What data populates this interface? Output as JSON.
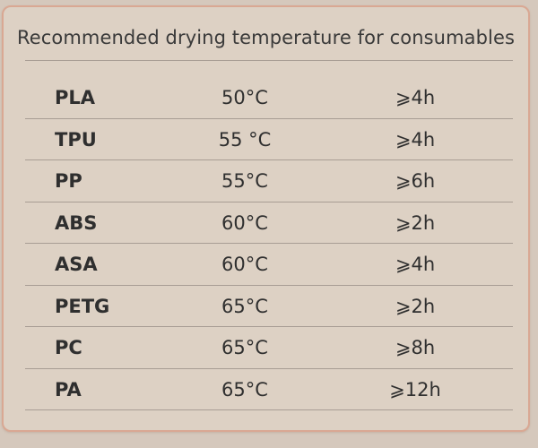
{
  "panel": {
    "title": "Recommended drying temperature for consumables"
  },
  "table": {
    "rows": [
      {
        "material": "PLA",
        "temperature": "50°C",
        "time": "⩾4h"
      },
      {
        "material": "TPU",
        "temperature": "55 °C",
        "time": "⩾4h"
      },
      {
        "material": "PP",
        "temperature": "55°C",
        "time": "⩾6h"
      },
      {
        "material": "ABS",
        "temperature": "60°C",
        "time": "⩾2h"
      },
      {
        "material": "ASA",
        "temperature": "60°C",
        "time": "⩾4h"
      },
      {
        "material": "PETG",
        "temperature": "65°C",
        "time": "⩾2h"
      },
      {
        "material": "PC",
        "temperature": "65°C",
        "time": "⩾8h"
      },
      {
        "material": "PA",
        "temperature": "65°C",
        "time": "⩾12h"
      }
    ]
  },
  "colors": {
    "background": "#d5c8bc",
    "panel": "#ddd1c4",
    "panel_border": "#d9a893",
    "text": "#2f2f2f",
    "divider": "#a89d94"
  }
}
